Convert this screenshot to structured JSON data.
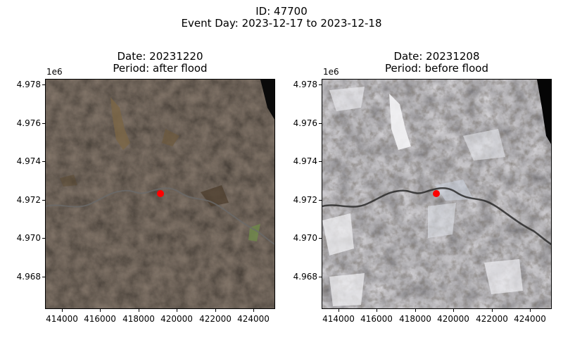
{
  "figure": {
    "suptitle_line1": "ID: 47700",
    "suptitle_line2": "Event Day: 2023-12-17 to 2023-12-18"
  },
  "panels": [
    {
      "title_line1": "Date: 20231220",
      "title_line2": "Period: after flood",
      "y_offset": "1e6",
      "y_ticks": [
        "4.978",
        "4.976",
        "4.974",
        "4.972",
        "4.970",
        "4.968"
      ],
      "x_ticks": [
        "414000",
        "416000",
        "418000",
        "420000",
        "422000",
        "424000"
      ],
      "image_description_colors": {
        "base": "#2a201a",
        "highlight": "#8a7550",
        "river": "#5a5a5a"
      },
      "marker_color": "#ff0000"
    },
    {
      "title_line1": "Date: 20231208",
      "title_line2": "Period: before flood",
      "y_offset": "1e6",
      "y_ticks": [
        "4.978",
        "4.976",
        "4.974",
        "4.972",
        "4.970",
        "4.968"
      ],
      "x_ticks": [
        "414000",
        "416000",
        "418000",
        "420000",
        "422000",
        "424000"
      ],
      "image_description_colors": {
        "base": "#7d7770",
        "snow": "#f2f2f4",
        "dark": "#3a3530"
      },
      "marker_color": "#ff0000"
    }
  ]
}
